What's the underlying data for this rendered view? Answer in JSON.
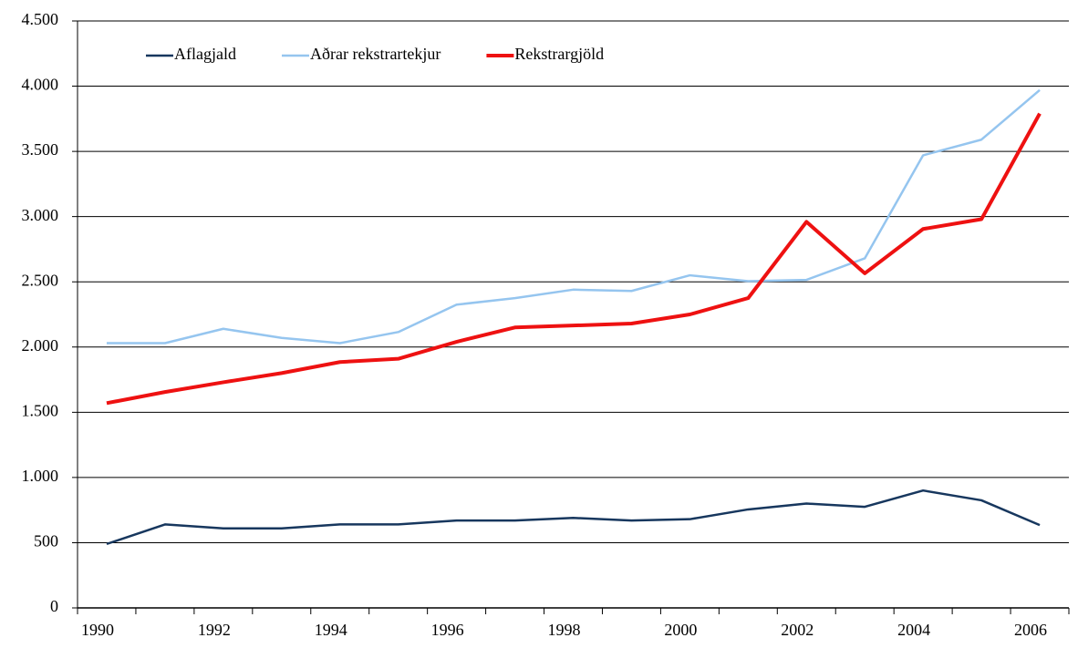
{
  "chart_data": {
    "type": "line",
    "categories": [
      "1990",
      null,
      "1992",
      null,
      "1994",
      null,
      "1996",
      null,
      "1998",
      null,
      "2000",
      null,
      "2002",
      null,
      "2004",
      null,
      "2006"
    ],
    "series": [
      {
        "name": "Aflagjald",
        "color": "#17375e",
        "width": 2.5,
        "values": [
          490,
          640,
          610,
          610,
          640,
          640,
          670,
          670,
          690,
          670,
          680,
          755,
          800,
          775,
          900,
          825,
          635
        ]
      },
      {
        "name": "Aðrar rekstrartekjur",
        "color": "#95c5ef",
        "width": 2.5,
        "values": [
          2030,
          2030,
          2140,
          2070,
          2030,
          2115,
          2325,
          2375,
          2440,
          2430,
          2550,
          2505,
          2515,
          2680,
          3470,
          3590,
          3970
        ]
      },
      {
        "name": "Rekstrargjöld",
        "color": "#ee1111",
        "width": 4,
        "values": [
          1570,
          1655,
          1730,
          1800,
          1885,
          1910,
          2040,
          2150,
          2165,
          2180,
          2250,
          2375,
          2960,
          2565,
          2905,
          2980,
          3790
        ]
      }
    ],
    "ylim": [
      0,
      4500
    ],
    "yticks": [
      0,
      500,
      {
        "value": 1000,
        "label": "1.000"
      },
      {
        "value": 1500,
        "label": "1.500"
      },
      {
        "value": 2000,
        "label": "2.000"
      },
      {
        "value": 2500,
        "label": "2.500"
      },
      {
        "value": 3000,
        "label": "3.000"
      },
      {
        "value": 3500,
        "label": "3.500"
      },
      {
        "value": 4000,
        "label": "4.000"
      },
      {
        "value": 4500,
        "label": "4.500"
      }
    ],
    "grid": true,
    "legend": "upper left"
  }
}
